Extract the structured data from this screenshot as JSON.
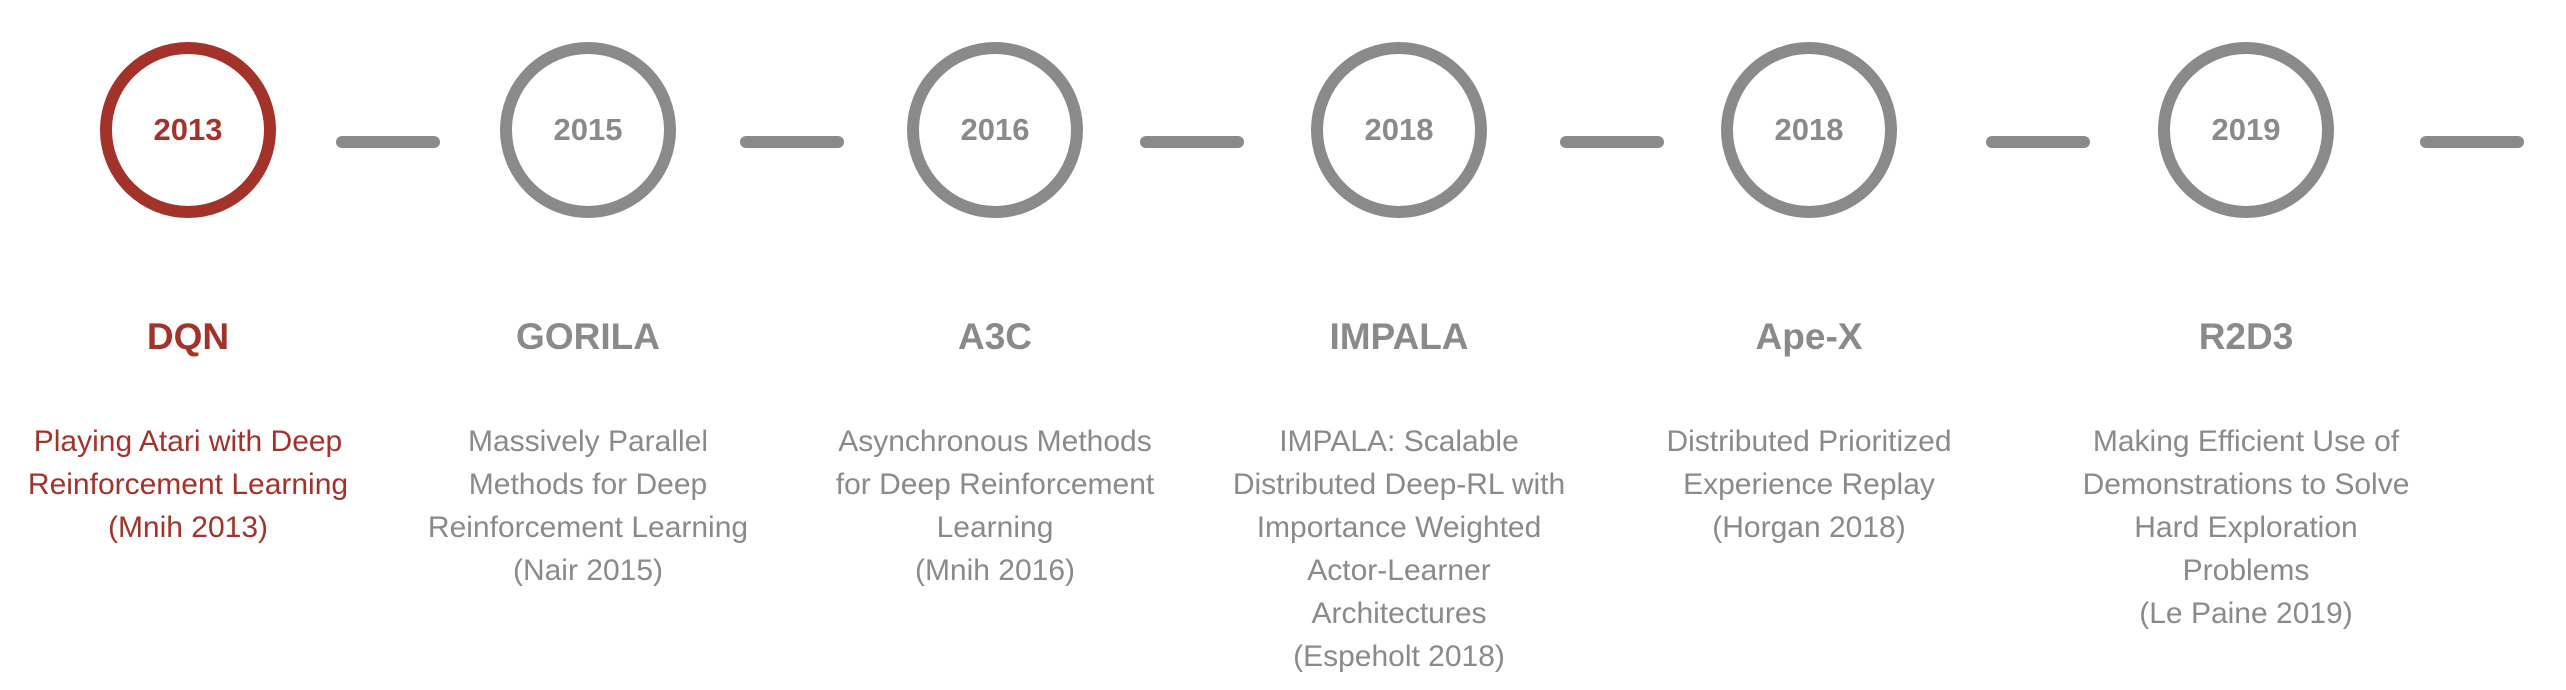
{
  "accent_color": "#a3322a",
  "inactive_color": "#8a8a8a",
  "milestones": [
    {
      "year": "2013",
      "name": "DQN",
      "description": "Playing Atari with Deep\nReinforcement Learning\n(Mnih 2013)",
      "active": true
    },
    {
      "year": "2015",
      "name": "GORILA",
      "description": "Massively Parallel\nMethods for Deep\nReinforcement Learning\n(Nair 2015)",
      "active": false
    },
    {
      "year": "2016",
      "name": "A3C",
      "description": "Asynchronous Methods\nfor Deep Reinforcement\nLearning\n(Mnih 2016)",
      "active": false
    },
    {
      "year": "2018",
      "name": "IMPALA",
      "description": "IMPALA: Scalable\nDistributed Deep-RL with\nImportance Weighted\nActor-Learner\nArchitectures\n(Espeholt 2018)",
      "active": false
    },
    {
      "year": "2018",
      "name": "Ape-X",
      "description": "Distributed Prioritized\nExperience Replay\n(Horgan 2018)",
      "active": false
    },
    {
      "year": "2019",
      "name": "R2D3",
      "description": "Making Efficient Use of\nDemonstrations to Solve\nHard Exploration\nProblems\n(Le Paine 2019)",
      "active": false
    }
  ]
}
